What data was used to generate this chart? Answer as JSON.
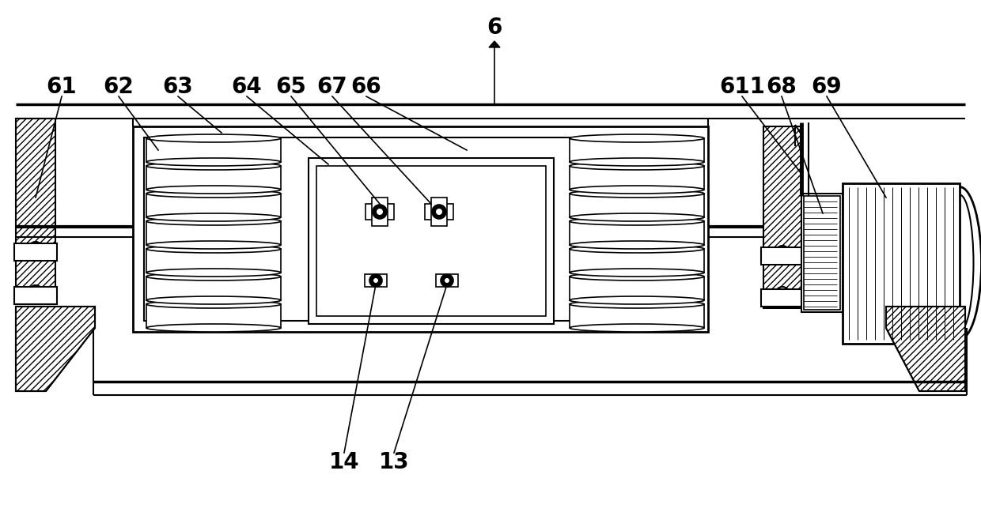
{
  "bg_color": "#ffffff",
  "line_color": "#000000",
  "lw": 1.5,
  "fs": 20
}
